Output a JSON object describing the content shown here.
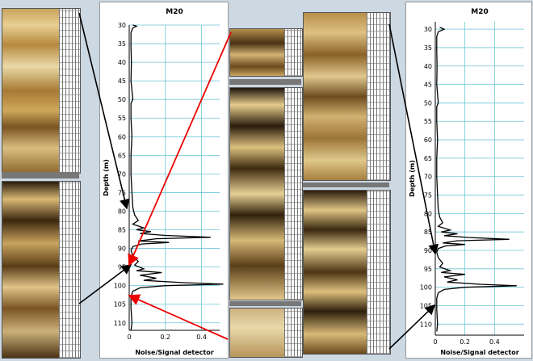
{
  "chart_data": [
    {
      "type": "line",
      "title": "M20",
      "xlabel": "Noise/Signal detector",
      "ylabel": "Depth (m)",
      "xlim": [
        0,
        0.5
      ],
      "ylim": [
        30,
        112
      ],
      "y_inverted": true,
      "xticks": [
        0,
        0.2,
        0.4
      ],
      "yticks": [
        30,
        35,
        40,
        45,
        50,
        55,
        60,
        65,
        70,
        75,
        80,
        85,
        90,
        95,
        100,
        105,
        110
      ],
      "grid": true,
      "series": [
        {
          "points": [
            [
              0.02,
              30
            ],
            [
              0.04,
              30.3
            ],
            [
              0.02,
              30.8
            ],
            [
              0.01,
              32
            ],
            [
              0.01,
              36
            ],
            [
              0.012,
              40
            ],
            [
              0.01,
              45
            ],
            [
              0.02,
              50
            ],
            [
              0.01,
              51
            ],
            [
              0.01,
              55
            ],
            [
              0.015,
              60
            ],
            [
              0.01,
              65
            ],
            [
              0.01,
              70
            ],
            [
              0.015,
              75
            ],
            [
              0.02,
              79
            ],
            [
              0.03,
              81
            ],
            [
              0.05,
              82.5
            ],
            [
              0.02,
              83.5
            ],
            [
              0.08,
              84.5
            ],
            [
              0.04,
              85
            ],
            [
              0.12,
              85.5
            ],
            [
              0.06,
              86
            ],
            [
              0.2,
              86.5
            ],
            [
              0.45,
              87
            ],
            [
              0.15,
              87.4
            ],
            [
              0.05,
              88
            ],
            [
              0.22,
              88.4
            ],
            [
              0.07,
              88.8
            ],
            [
              0.02,
              89.5
            ],
            [
              0.01,
              90.5
            ],
            [
              0.02,
              92
            ],
            [
              0.05,
              93.5
            ],
            [
              0.03,
              94.5
            ],
            [
              0.08,
              95.5
            ],
            [
              0.04,
              96
            ],
            [
              0.18,
              96.5
            ],
            [
              0.06,
              97.2
            ],
            [
              0.15,
              98
            ],
            [
              0.08,
              98.6
            ],
            [
              0.3,
              99.2
            ],
            [
              0.52,
              99.6
            ],
            [
              0.2,
              100
            ],
            [
              0.06,
              100.6
            ],
            [
              0.02,
              101.5
            ],
            [
              0.01,
              103
            ],
            [
              0.01,
              106
            ],
            [
              0.015,
              110
            ],
            [
              0.01,
              112
            ]
          ]
        }
      ]
    },
    {
      "type": "line",
      "title": "M20",
      "xlabel": "Noise/Signal detector",
      "ylabel": "Depth (m)",
      "xlim": [
        0,
        0.6
      ],
      "ylim": [
        28,
        113
      ],
      "y_inverted": true,
      "xticks": [
        0,
        0.2,
        0.4
      ],
      "yticks": [
        30,
        35,
        40,
        45,
        50,
        55,
        60,
        65,
        70,
        75,
        80,
        85,
        90,
        95,
        100,
        105,
        110
      ],
      "grid": true,
      "series": [
        {
          "points": [
            [
              0.03,
              29.5
            ],
            [
              0.06,
              30
            ],
            [
              0.02,
              30.7
            ],
            [
              0.01,
              32
            ],
            [
              0.01,
              36
            ],
            [
              0.012,
              40
            ],
            [
              0.01,
              45
            ],
            [
              0.02,
              50
            ],
            [
              0.01,
              51
            ],
            [
              0.01,
              55
            ],
            [
              0.015,
              60
            ],
            [
              0.01,
              65
            ],
            [
              0.01,
              70
            ],
            [
              0.015,
              75
            ],
            [
              0.02,
              79
            ],
            [
              0.03,
              81
            ],
            [
              0.05,
              82.5
            ],
            [
              0.02,
              83.5
            ],
            [
              0.1,
              84.5
            ],
            [
              0.04,
              85
            ],
            [
              0.15,
              85.5
            ],
            [
              0.06,
              86
            ],
            [
              0.22,
              86.5
            ],
            [
              0.5,
              87
            ],
            [
              0.15,
              87.4
            ],
            [
              0.05,
              88
            ],
            [
              0.2,
              88.4
            ],
            [
              0.07,
              88.8
            ],
            [
              0.02,
              89.5
            ],
            [
              0.01,
              90.5
            ],
            [
              0.02,
              92
            ],
            [
              0.05,
              93.5
            ],
            [
              0.03,
              94.5
            ],
            [
              0.1,
              95.5
            ],
            [
              0.04,
              96
            ],
            [
              0.2,
              96.5
            ],
            [
              0.06,
              97.2
            ],
            [
              0.15,
              98
            ],
            [
              0.08,
              98.6
            ],
            [
              0.3,
              99.2
            ],
            [
              0.55,
              99.6
            ],
            [
              0.2,
              100
            ],
            [
              0.06,
              100.6
            ],
            [
              0.02,
              101.5
            ],
            [
              0.01,
              103
            ],
            [
              0.01,
              106
            ],
            [
              0.015,
              110
            ],
            [
              0.01,
              112
            ]
          ]
        }
      ]
    }
  ]
}
